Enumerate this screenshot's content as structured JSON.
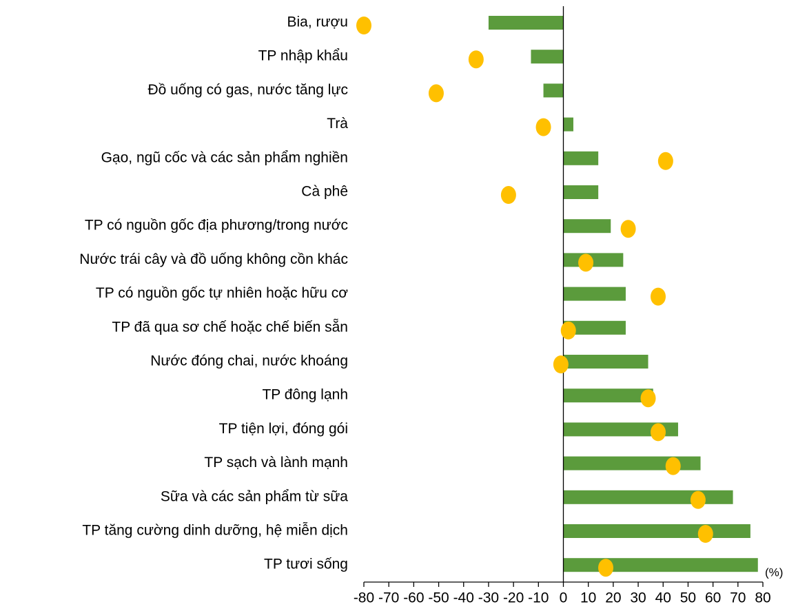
{
  "chart_data": {
    "type": "bar_dot",
    "categories": [
      "Bia, rượu",
      "TP nhập khẩu",
      "Đồ uống có gas, nước tăng lực",
      "Trà",
      "Gạo, ngũ cốc và các sản phẩm nghiền",
      "Cà phê",
      "TP có nguồn gốc địa phương/trong nước",
      "Nước trái cây và đồ uống không cồn khác",
      "TP có nguồn gốc tự nhiên hoặc hữu cơ",
      "TP đã qua sơ chế hoặc chế biến sẵn",
      "Nước đóng chai, nước khoáng",
      "TP đông lạnh",
      "TP tiện lợi, đóng gói",
      "TP sạch và lành mạnh",
      "Sữa và các sản phẩm từ sữa",
      "TP tăng cường dinh dưỡng, hệ miễn dịch",
      "TP tươi sống"
    ],
    "series": [
      {
        "color": "#5b9b3c",
        "values": [
          -30,
          -13,
          -8,
          4,
          14,
          14,
          19,
          24,
          25,
          25,
          34,
          36,
          46,
          55,
          68,
          75,
          78
        ]
      },
      {
        "color": "#ffc000",
        "values": [
          -80,
          -35,
          -51,
          -8,
          41,
          -22,
          26,
          9,
          38,
          2,
          -1,
          34,
          38,
          44,
          54,
          57,
          17
        ]
      }
    ],
    "xlim": [
      -80,
      80
    ],
    "xticks": [
      -80,
      -70,
      -60,
      -50,
      -40,
      -30,
      -20,
      -10,
      0,
      10,
      20,
      30,
      40,
      50,
      60,
      70,
      80
    ],
    "unit_label": "(%)"
  }
}
